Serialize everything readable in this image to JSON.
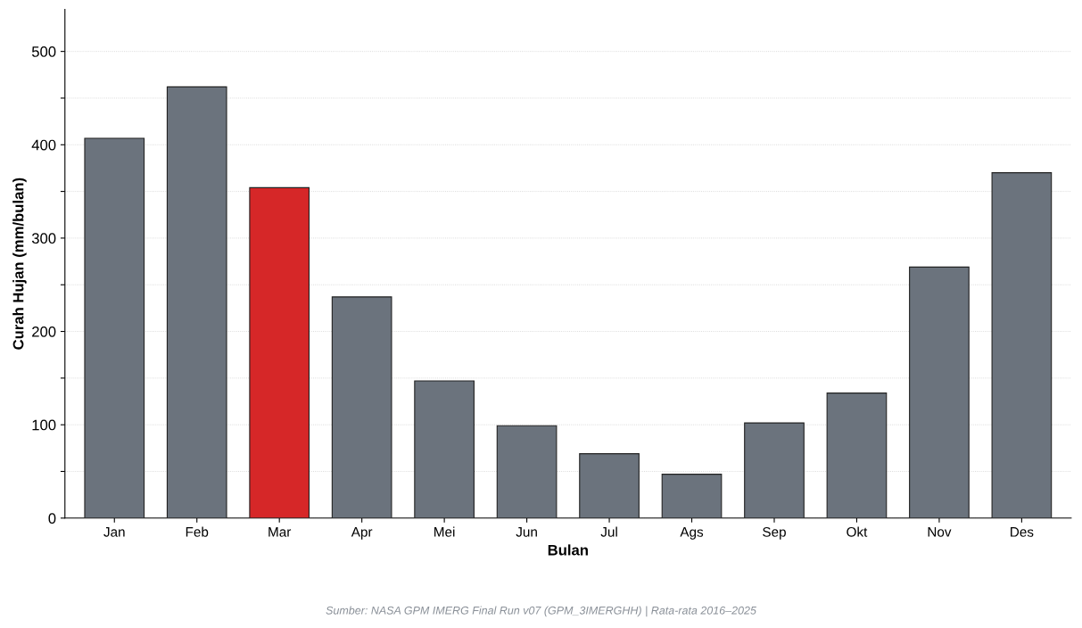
{
  "chart_data": {
    "type": "bar",
    "xlabel": "Bulan",
    "ylabel": "Curah Hujan (mm/bulan)",
    "categories": [
      "Jan",
      "Feb",
      "Mar",
      "Apr",
      "Mei",
      "Jun",
      "Jul",
      "Ags",
      "Sep",
      "Okt",
      "Nov",
      "Des"
    ],
    "values": [
      407,
      462,
      354,
      237,
      147,
      99,
      69,
      47,
      102,
      134,
      269,
      370
    ],
    "colors": [
      "#6b737d",
      "#6b737d",
      "#d62728",
      "#6b737d",
      "#6b737d",
      "#6b737d",
      "#6b737d",
      "#6b737d",
      "#6b737d",
      "#6b737d",
      "#6b737d",
      "#6b737d"
    ],
    "ylim": [
      0,
      545
    ],
    "yticks": [
      0,
      {
        "value": 50,
        "label": null
      },
      100,
      {
        "value": 150,
        "label": null
      },
      200,
      {
        "value": 250,
        "label": null
      },
      300,
      {
        "value": 350,
        "label": null
      },
      400,
      {
        "value": 450,
        "label": null
      },
      500
    ],
    "grid": "y",
    "annotations": [
      "Sumber: NASA GPM IMERG Final Run v07 (GPM_3IMERGHH) | Rata-rata 2016–2025"
    ]
  }
}
